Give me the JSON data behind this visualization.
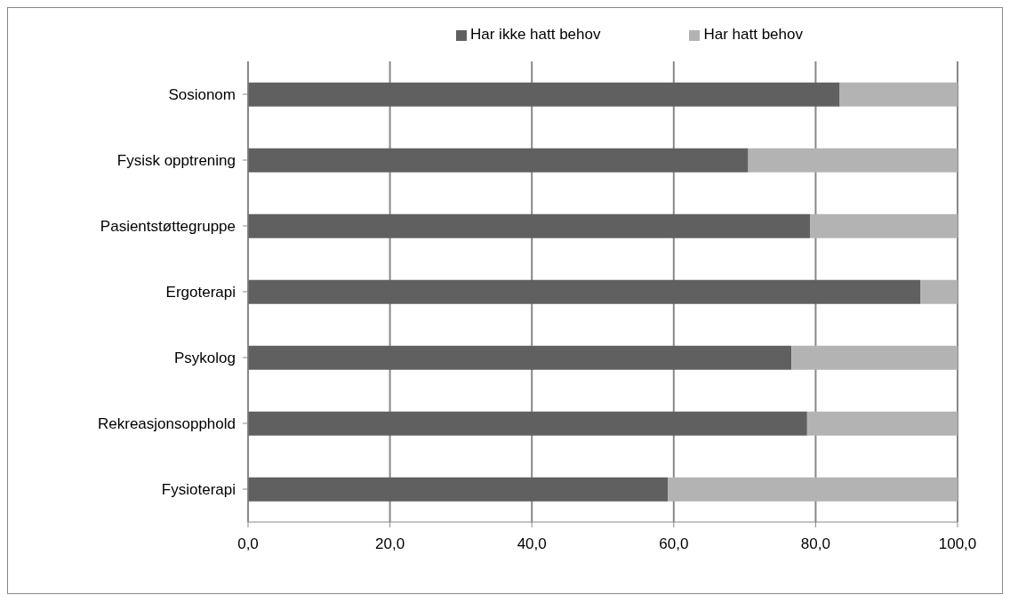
{
  "chart_data": {
    "type": "bar",
    "orientation": "horizontal",
    "stacked": true,
    "categories": [
      "Sosionom",
      "Fysisk opptrening",
      "Pasientstøttegruppe",
      "Ergoterapi",
      "Psykolog",
      "Rekreasjonsopphold",
      "Fysioterapi"
    ],
    "series": [
      {
        "name": "Har ikke hatt behov",
        "color": "#606060",
        "values": [
          83.4,
          70.5,
          79.2,
          94.8,
          76.6,
          78.8,
          59.2
        ]
      },
      {
        "name": "Har hatt  behov",
        "color": "#b3b3b3",
        "values": [
          16.6,
          29.5,
          20.8,
          5.2,
          23.4,
          21.2,
          40.8
        ]
      }
    ],
    "xlim": [
      0,
      100
    ],
    "xticks": [
      {
        "value": 0,
        "label": "0,0"
      },
      {
        "value": 20,
        "label": "20,0"
      },
      {
        "value": 40,
        "label": "40,0"
      },
      {
        "value": 60,
        "label": "60,0"
      },
      {
        "value": 80,
        "label": "80,0"
      },
      {
        "value": 100,
        "label": "100,0"
      }
    ],
    "grid": "x",
    "legend": "top"
  }
}
